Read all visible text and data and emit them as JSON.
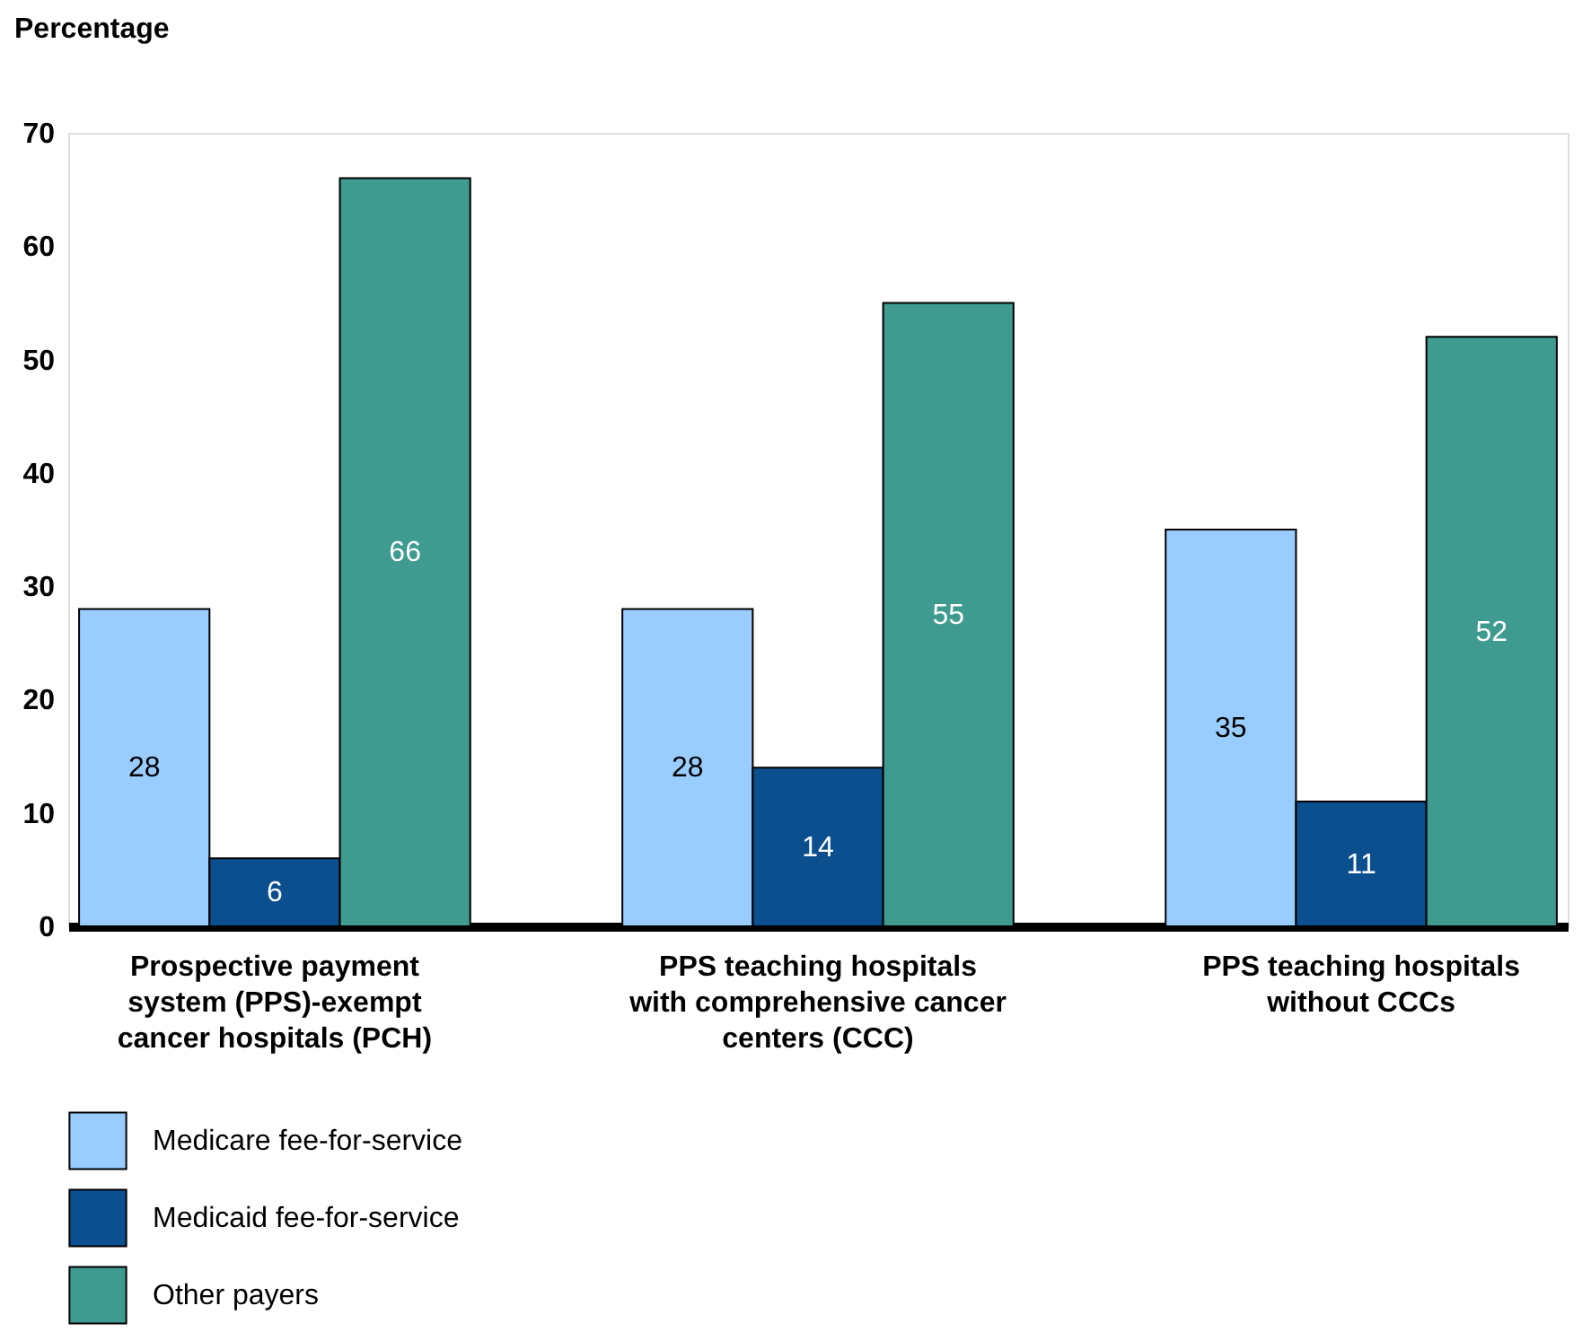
{
  "chart_data": {
    "type": "bar",
    "ylabel": "Percentage",
    "categories": [
      "Prospective payment system (PPS)-exempt cancer hospitals (PCH)",
      "PPS teaching hospitals with comprehensive cancer centers (CCC)",
      "PPS teaching hospitals without CCCs"
    ],
    "series": [
      {
        "name": "Medicare fee-for-service",
        "color": "#99ccff",
        "values": [
          28,
          28,
          35
        ]
      },
      {
        "name": "Medicaid fee-for-service",
        "color": "#0b4f8f",
        "values": [
          6,
          14,
          11
        ]
      },
      {
        "name": "Other payers",
        "color": "#3f9a90",
        "values": [
          66,
          55,
          52
        ]
      }
    ],
    "ylim": [
      0,
      70
    ],
    "yticks": [
      0,
      10,
      20,
      30,
      40,
      50,
      60,
      70
    ],
    "grid": false,
    "legend": "bottom left",
    "data_labels": true
  }
}
